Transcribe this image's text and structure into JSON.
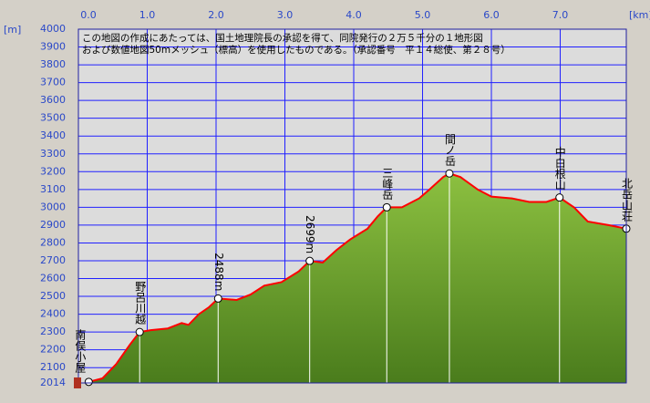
{
  "chart_data": {
    "type": "area",
    "x_unit": "[km]",
    "y_unit": "[m]",
    "notice": [
      "この地図の作成にあたっては、国土地理院長の承認を得て、同院発行の２万５千分の１地形図",
      "および数値地図50mメッシュ（標高）を使用したものである。（承認番号　平１４総使、第２８号）"
    ],
    "x": [
      0.15,
      0.35,
      0.55,
      0.75,
      0.89,
      1.05,
      1.3,
      1.5,
      1.6,
      1.75,
      1.9,
      2.03,
      2.3,
      2.5,
      2.7,
      2.95,
      3.2,
      3.36,
      3.55,
      3.75,
      3.95,
      4.2,
      4.35,
      4.48,
      4.7,
      4.95,
      5.1,
      5.3,
      5.39,
      5.55,
      5.8,
      6.0,
      6.3,
      6.55,
      6.8,
      6.99,
      7.2,
      7.4,
      7.7,
      7.96
    ],
    "values": [
      2020,
      2040,
      2120,
      2230,
      2300,
      2310,
      2320,
      2350,
      2340,
      2400,
      2440,
      2488,
      2480,
      2510,
      2560,
      2580,
      2640,
      2699,
      2690,
      2760,
      2820,
      2880,
      2950,
      3000,
      3000,
      3050,
      3100,
      3170,
      3190,
      3170,
      3100,
      3060,
      3050,
      3030,
      3030,
      3055,
      3000,
      2920,
      2900,
      2880
    ],
    "color": "#6f9e2c",
    "line_color": "#ff0000",
    "landmarks": [
      {
        "label": "南俣小屋",
        "km": 0.15,
        "elev": 2020
      },
      {
        "label": "野呂川越",
        "km": 0.89,
        "elev": 2300
      },
      {
        "label": "2488m",
        "km": 2.03,
        "elev": 2488
      },
      {
        "label": "2699m",
        "km": 3.36,
        "elev": 2699
      },
      {
        "label": "三峰岳",
        "km": 4.48,
        "elev": 3000
      },
      {
        "label": "間ノ岳",
        "km": 5.39,
        "elev": 3190
      },
      {
        "label": "中白根山",
        "km": 6.99,
        "elev": 3055
      },
      {
        "label": "北岳山荘",
        "km": 7.96,
        "elev": 2880
      }
    ],
    "xlim": [
      0,
      7.96
    ],
    "xticks": [
      {
        "value": 0,
        "label": "0.0"
      },
      {
        "value": 1,
        "label": "1.0"
      },
      {
        "value": 2,
        "label": "2.0"
      },
      {
        "value": 3,
        "label": "3.0"
      },
      {
        "value": 4,
        "label": "4.0"
      },
      {
        "value": 5,
        "label": "5.0"
      },
      {
        "value": 6,
        "label": "6.0"
      },
      {
        "value": 7,
        "label": "7.0"
      }
    ],
    "ylim": [
      2014,
      4000
    ],
    "yticks": [
      2014,
      2100,
      2200,
      2300,
      2400,
      2500,
      2600,
      2700,
      2800,
      2900,
      3000,
      3100,
      3200,
      3300,
      3400,
      3500,
      3600,
      3700,
      3800,
      3900,
      4000
    ],
    "grid": true
  }
}
